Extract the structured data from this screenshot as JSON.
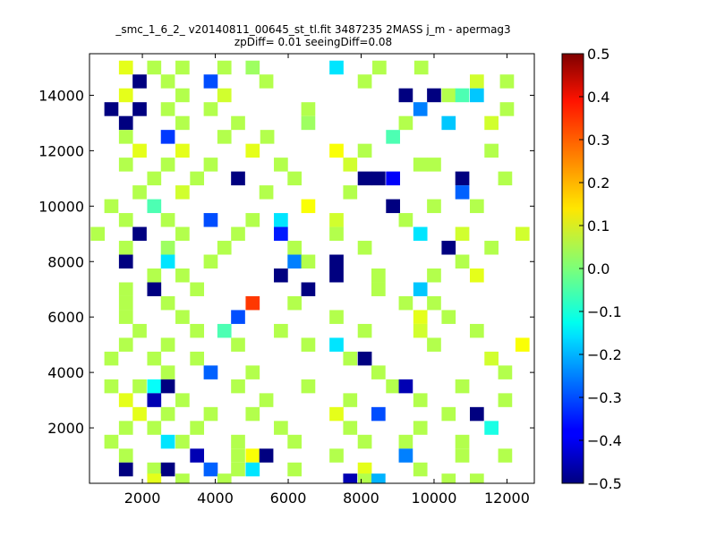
{
  "title_line1": "_smc_1_6_2_ v20140811_00645_st_tl.fit 3487235 2MASS j_m - apermag3",
  "title_line2": "zpDiff= 0.01 seeingDiff=0.08",
  "chart_data": {
    "type": "heatmap",
    "title": "_smc_1_6_2_ v20140811_00645_st_tl.fit 3487235 2MASS j_m - apermag3 zpDiff= 0.01 seeingDiff=0.08",
    "xlim": [
      550,
      12750
    ],
    "ylim": [
      0,
      15500
    ],
    "xticks": [
      "2000",
      "4000",
      "6000",
      "8000",
      "10000",
      "12000"
    ],
    "yticks": [
      "2000",
      "4000",
      "6000",
      "8000",
      "10000",
      "12000",
      "14000"
    ],
    "colorbar": {
      "min": -0.5,
      "max": 0.5,
      "colormap": "jet",
      "ticks": [
        "0.5",
        "0.4",
        "0.3",
        "0.2",
        "0.1",
        "0.0",
        "−0.1",
        "−0.2",
        "−0.3",
        "−0.4",
        "−0.5"
      ]
    },
    "grid": false,
    "bin_size": [
      385,
      500
    ],
    "cells": [
      {
        "x": 1550,
        "y": 15000,
        "value": 0.1
      },
      {
        "x": 2325,
        "y": 15000,
        "value": 0.05
      },
      {
        "x": 3100,
        "y": 15000,
        "value": 0.05
      },
      {
        "x": 4250,
        "y": 15000,
        "value": 0.05
      },
      {
        "x": 5025,
        "y": 15000,
        "value": 0.03
      },
      {
        "x": 7325,
        "y": 15000,
        "value": -0.15
      },
      {
        "x": 8500,
        "y": 15000,
        "value": 0.05
      },
      {
        "x": 9650,
        "y": 15000,
        "value": 0.05
      },
      {
        "x": 1925,
        "y": 14500,
        "value": -0.5
      },
      {
        "x": 2700,
        "y": 14500,
        "value": 0.05
      },
      {
        "x": 3875,
        "y": 14500,
        "value": -0.3
      },
      {
        "x": 5400,
        "y": 14500,
        "value": 0.05
      },
      {
        "x": 8100,
        "y": 14500,
        "value": 0.05
      },
      {
        "x": 11175,
        "y": 14500,
        "value": 0.08
      },
      {
        "x": 12000,
        "y": 14500,
        "value": 0.05
      },
      {
        "x": 1550,
        "y": 14000,
        "value": 0.1
      },
      {
        "x": 3100,
        "y": 14000,
        "value": 0.05
      },
      {
        "x": 4250,
        "y": 14000,
        "value": 0.08
      },
      {
        "x": 9225,
        "y": 14000,
        "value": -0.5
      },
      {
        "x": 10000,
        "y": 14000,
        "value": -0.5
      },
      {
        "x": 10400,
        "y": 14000,
        "value": 0.05
      },
      {
        "x": 10775,
        "y": 14000,
        "value": -0.05
      },
      {
        "x": 11175,
        "y": 14000,
        "value": -0.18
      },
      {
        "x": 1150,
        "y": 13500,
        "value": -0.5
      },
      {
        "x": 1925,
        "y": 13500,
        "value": -0.5
      },
      {
        "x": 2700,
        "y": 13500,
        "value": 0.05
      },
      {
        "x": 3875,
        "y": 13500,
        "value": 0.05
      },
      {
        "x": 6550,
        "y": 13500,
        "value": 0.05
      },
      {
        "x": 9625,
        "y": 13500,
        "value": -0.25
      },
      {
        "x": 12000,
        "y": 13500,
        "value": 0.05
      },
      {
        "x": 1550,
        "y": 13000,
        "value": -0.5
      },
      {
        "x": 3100,
        "y": 13000,
        "value": 0.05
      },
      {
        "x": 4625,
        "y": 13000,
        "value": 0.05
      },
      {
        "x": 6550,
        "y": 13000,
        "value": 0.03
      },
      {
        "x": 9225,
        "y": 13000,
        "value": 0.05
      },
      {
        "x": 10400,
        "y": 13000,
        "value": -0.18
      },
      {
        "x": 11575,
        "y": 13000,
        "value": 0.08
      },
      {
        "x": 1550,
        "y": 12500,
        "value": 0.05
      },
      {
        "x": 2700,
        "y": 12500,
        "value": -0.32
      },
      {
        "x": 4250,
        "y": 12500,
        "value": 0.05
      },
      {
        "x": 5425,
        "y": 12500,
        "value": 0.05
      },
      {
        "x": 8875,
        "y": 12500,
        "value": -0.05
      },
      {
        "x": 1925,
        "y": 12000,
        "value": 0.1
      },
      {
        "x": 3100,
        "y": 12000,
        "value": 0.1
      },
      {
        "x": 5025,
        "y": 12000,
        "value": 0.1
      },
      {
        "x": 7325,
        "y": 12000,
        "value": 0.12
      },
      {
        "x": 8100,
        "y": 12000,
        "value": 0.05
      },
      {
        "x": 11575,
        "y": 12000,
        "value": 0.05
      },
      {
        "x": 1550,
        "y": 11500,
        "value": 0.05
      },
      {
        "x": 2700,
        "y": 11500,
        "value": 0.05
      },
      {
        "x": 3875,
        "y": 11500,
        "value": 0.05
      },
      {
        "x": 5800,
        "y": 11500,
        "value": 0.05
      },
      {
        "x": 7700,
        "y": 11500,
        "value": 0.08
      },
      {
        "x": 9625,
        "y": 11500,
        "value": 0.05
      },
      {
        "x": 10000,
        "y": 11500,
        "value": 0.05
      },
      {
        "x": 2325,
        "y": 11000,
        "value": 0.05
      },
      {
        "x": 3500,
        "y": 11000,
        "value": 0.05
      },
      {
        "x": 4625,
        "y": 11000,
        "value": -0.5
      },
      {
        "x": 6175,
        "y": 11000,
        "value": 0.05
      },
      {
        "x": 8100,
        "y": 11000,
        "value": -0.5
      },
      {
        "x": 8475,
        "y": 11000,
        "value": -0.5
      },
      {
        "x": 8875,
        "y": 11000,
        "value": -0.38
      },
      {
        "x": 10775,
        "y": 11000,
        "value": -0.5
      },
      {
        "x": 11950,
        "y": 11000,
        "value": 0.05
      },
      {
        "x": 1925,
        "y": 10500,
        "value": 0.05
      },
      {
        "x": 3100,
        "y": 10500,
        "value": 0.08
      },
      {
        "x": 5400,
        "y": 10500,
        "value": 0.05
      },
      {
        "x": 7700,
        "y": 10500,
        "value": 0.05
      },
      {
        "x": 10775,
        "y": 10500,
        "value": -0.28
      },
      {
        "x": 1150,
        "y": 10000,
        "value": 0.05
      },
      {
        "x": 2325,
        "y": 10000,
        "value": -0.05
      },
      {
        "x": 6550,
        "y": 10000,
        "value": 0.12
      },
      {
        "x": 8875,
        "y": 10000,
        "value": -0.5
      },
      {
        "x": 10000,
        "y": 10000,
        "value": 0.05
      },
      {
        "x": 11175,
        "y": 10000,
        "value": 0.05
      },
      {
        "x": 1550,
        "y": 9500,
        "value": 0.05
      },
      {
        "x": 2700,
        "y": 9500,
        "value": 0.05
      },
      {
        "x": 3875,
        "y": 9500,
        "value": -0.3
      },
      {
        "x": 5025,
        "y": 9500,
        "value": 0.05
      },
      {
        "x": 5800,
        "y": 9500,
        "value": -0.15
      },
      {
        "x": 7325,
        "y": 9500,
        "value": 0.08
      },
      {
        "x": 9225,
        "y": 9500,
        "value": 0.05
      },
      {
        "x": 775,
        "y": 9000,
        "value": 0.05
      },
      {
        "x": 1925,
        "y": 9000,
        "value": -0.5
      },
      {
        "x": 3100,
        "y": 9000,
        "value": 0.05
      },
      {
        "x": 4625,
        "y": 9000,
        "value": 0.05
      },
      {
        "x": 5800,
        "y": 9000,
        "value": -0.35
      },
      {
        "x": 7325,
        "y": 9000,
        "value": 0.05
      },
      {
        "x": 9625,
        "y": 9000,
        "value": -0.15
      },
      {
        "x": 10775,
        "y": 9000,
        "value": 0.08
      },
      {
        "x": 12425,
        "y": 9000,
        "value": 0.08
      },
      {
        "x": 1550,
        "y": 8500,
        "value": 0.05
      },
      {
        "x": 2700,
        "y": 8500,
        "value": 0.03
      },
      {
        "x": 4250,
        "y": 8500,
        "value": 0.05
      },
      {
        "x": 6175,
        "y": 8500,
        "value": 0.05
      },
      {
        "x": 8100,
        "y": 8500,
        "value": 0.05
      },
      {
        "x": 10400,
        "y": 8500,
        "value": -0.5
      },
      {
        "x": 11575,
        "y": 8500,
        "value": 0.05
      },
      {
        "x": 1550,
        "y": 8000,
        "value": -0.5
      },
      {
        "x": 2700,
        "y": 8000,
        "value": -0.15
      },
      {
        "x": 3875,
        "y": 8000,
        "value": 0.05
      },
      {
        "x": 6175,
        "y": 8000,
        "value": -0.25
      },
      {
        "x": 6550,
        "y": 8000,
        "value": 0.05
      },
      {
        "x": 7325,
        "y": 8000,
        "value": -0.5
      },
      {
        "x": 10775,
        "y": 8000,
        "value": 0.05
      },
      {
        "x": 2325,
        "y": 7500,
        "value": 0.05
      },
      {
        "x": 3100,
        "y": 7500,
        "value": 0.05
      },
      {
        "x": 5800,
        "y": 7500,
        "value": -0.5
      },
      {
        "x": 7325,
        "y": 7500,
        "value": -0.5
      },
      {
        "x": 8475,
        "y": 7500,
        "value": 0.05
      },
      {
        "x": 10000,
        "y": 7500,
        "value": 0.05
      },
      {
        "x": 11175,
        "y": 7500,
        "value": 0.1
      },
      {
        "x": 1550,
        "y": 7000,
        "value": 0.05
      },
      {
        "x": 2325,
        "y": 7000,
        "value": -0.5
      },
      {
        "x": 3500,
        "y": 7000,
        "value": 0.05
      },
      {
        "x": 6550,
        "y": 7000,
        "value": -0.5
      },
      {
        "x": 8475,
        "y": 7000,
        "value": 0.05
      },
      {
        "x": 9625,
        "y": 7000,
        "value": -0.18
      },
      {
        "x": 1550,
        "y": 6500,
        "value": 0.05
      },
      {
        "x": 2700,
        "y": 6500,
        "value": 0.05
      },
      {
        "x": 5025,
        "y": 6500,
        "value": 0.32
      },
      {
        "x": 6175,
        "y": 6500,
        "value": 0.05
      },
      {
        "x": 9225,
        "y": 6500,
        "value": 0.05
      },
      {
        "x": 10000,
        "y": 6500,
        "value": 0.05
      },
      {
        "x": 1550,
        "y": 6000,
        "value": 0.05
      },
      {
        "x": 3100,
        "y": 6000,
        "value": 0.05
      },
      {
        "x": 4625,
        "y": 6000,
        "value": -0.3
      },
      {
        "x": 7325,
        "y": 6000,
        "value": 0.05
      },
      {
        "x": 9625,
        "y": 6000,
        "value": 0.1
      },
      {
        "x": 10400,
        "y": 6000,
        "value": 0.05
      },
      {
        "x": 1925,
        "y": 5500,
        "value": 0.05
      },
      {
        "x": 3500,
        "y": 5500,
        "value": 0.05
      },
      {
        "x": 4250,
        "y": 5500,
        "value": -0.05
      },
      {
        "x": 5800,
        "y": 5500,
        "value": 0.05
      },
      {
        "x": 8100,
        "y": 5500,
        "value": 0.05
      },
      {
        "x": 9625,
        "y": 5500,
        "value": 0.08
      },
      {
        "x": 11175,
        "y": 5500,
        "value": 0.05
      },
      {
        "x": 1550,
        "y": 5000,
        "value": 0.05
      },
      {
        "x": 2700,
        "y": 5000,
        "value": 0.05
      },
      {
        "x": 4625,
        "y": 5000,
        "value": 0.05
      },
      {
        "x": 6550,
        "y": 5000,
        "value": 0.05
      },
      {
        "x": 7325,
        "y": 5000,
        "value": -0.15
      },
      {
        "x": 10000,
        "y": 5000,
        "value": 0.05
      },
      {
        "x": 12425,
        "y": 5000,
        "value": 0.12
      },
      {
        "x": 1150,
        "y": 4500,
        "value": 0.05
      },
      {
        "x": 2325,
        "y": 4500,
        "value": 0.05
      },
      {
        "x": 3500,
        "y": 4500,
        "value": 0.05
      },
      {
        "x": 7700,
        "y": 4500,
        "value": 0.05
      },
      {
        "x": 8100,
        "y": 4500,
        "value": -0.5
      },
      {
        "x": 11575,
        "y": 4500,
        "value": 0.08
      },
      {
        "x": 2700,
        "y": 4000,
        "value": 0.05
      },
      {
        "x": 3875,
        "y": 4000,
        "value": -0.28
      },
      {
        "x": 5025,
        "y": 4000,
        "value": 0.05
      },
      {
        "x": 8475,
        "y": 4000,
        "value": 0.05
      },
      {
        "x": 11950,
        "y": 4000,
        "value": 0.05
      },
      {
        "x": 1150,
        "y": 3500,
        "value": 0.05
      },
      {
        "x": 1925,
        "y": 3500,
        "value": 0.05
      },
      {
        "x": 2325,
        "y": 3500,
        "value": -0.12
      },
      {
        "x": 2700,
        "y": 3500,
        "value": -0.5
      },
      {
        "x": 4625,
        "y": 3500,
        "value": 0.05
      },
      {
        "x": 6550,
        "y": 3500,
        "value": 0.05
      },
      {
        "x": 8875,
        "y": 3500,
        "value": 0.05
      },
      {
        "x": 9225,
        "y": 3500,
        "value": -0.45
      },
      {
        "x": 10775,
        "y": 3500,
        "value": 0.05
      },
      {
        "x": 1550,
        "y": 3000,
        "value": 0.1
      },
      {
        "x": 2325,
        "y": 3000,
        "value": -0.45
      },
      {
        "x": 3100,
        "y": 3000,
        "value": 0.05
      },
      {
        "x": 5400,
        "y": 3000,
        "value": 0.05
      },
      {
        "x": 7700,
        "y": 3000,
        "value": 0.05
      },
      {
        "x": 9625,
        "y": 3000,
        "value": 0.05
      },
      {
        "x": 11950,
        "y": 3000,
        "value": 0.05
      },
      {
        "x": 1925,
        "y": 2500,
        "value": 0.1
      },
      {
        "x": 2700,
        "y": 2500,
        "value": 0.05
      },
      {
        "x": 3875,
        "y": 2500,
        "value": 0.05
      },
      {
        "x": 5025,
        "y": 2500,
        "value": 0.05
      },
      {
        "x": 7325,
        "y": 2500,
        "value": 0.1
      },
      {
        "x": 8475,
        "y": 2500,
        "value": -0.3
      },
      {
        "x": 10400,
        "y": 2500,
        "value": 0.05
      },
      {
        "x": 11175,
        "y": 2500,
        "value": -0.5
      },
      {
        "x": 1550,
        "y": 2000,
        "value": 0.05
      },
      {
        "x": 2325,
        "y": 2000,
        "value": 0.05
      },
      {
        "x": 3500,
        "y": 2000,
        "value": 0.05
      },
      {
        "x": 5800,
        "y": 2000,
        "value": 0.05
      },
      {
        "x": 7700,
        "y": 2000,
        "value": 0.05
      },
      {
        "x": 9625,
        "y": 2000,
        "value": 0.05
      },
      {
        "x": 11575,
        "y": 2000,
        "value": -0.1
      },
      {
        "x": 1150,
        "y": 1500,
        "value": 0.05
      },
      {
        "x": 2700,
        "y": 1500,
        "value": -0.15
      },
      {
        "x": 3100,
        "y": 1500,
        "value": 0.05
      },
      {
        "x": 4625,
        "y": 1500,
        "value": 0.05
      },
      {
        "x": 6175,
        "y": 1500,
        "value": 0.05
      },
      {
        "x": 8100,
        "y": 1500,
        "value": 0.05
      },
      {
        "x": 9225,
        "y": 1500,
        "value": 0.05
      },
      {
        "x": 10775,
        "y": 1500,
        "value": 0.05
      },
      {
        "x": 1550,
        "y": 1000,
        "value": 0.05
      },
      {
        "x": 3500,
        "y": 1000,
        "value": -0.45
      },
      {
        "x": 4625,
        "y": 1000,
        "value": 0.05
      },
      {
        "x": 5025,
        "y": 1000,
        "value": 0.12
      },
      {
        "x": 5400,
        "y": 1000,
        "value": -0.5
      },
      {
        "x": 7325,
        "y": 1000,
        "value": 0.05
      },
      {
        "x": 9225,
        "y": 1000,
        "value": -0.25
      },
      {
        "x": 10775,
        "y": 1000,
        "value": 0.05
      },
      {
        "x": 11950,
        "y": 1000,
        "value": 0.05
      },
      {
        "x": 1550,
        "y": 500,
        "value": -0.5
      },
      {
        "x": 2325,
        "y": 500,
        "value": 0.05
      },
      {
        "x": 2700,
        "y": 500,
        "value": -0.5
      },
      {
        "x": 3875,
        "y": 500,
        "value": -0.28
      },
      {
        "x": 4625,
        "y": 500,
        "value": 0.05
      },
      {
        "x": 5025,
        "y": 500,
        "value": -0.15
      },
      {
        "x": 6175,
        "y": 500,
        "value": 0.05
      },
      {
        "x": 8100,
        "y": 500,
        "value": 0.1
      },
      {
        "x": 9625,
        "y": 500,
        "value": 0.05
      },
      {
        "x": 2325,
        "y": 100,
        "value": 0.1
      },
      {
        "x": 3100,
        "y": 100,
        "value": 0.05
      },
      {
        "x": 4250,
        "y": 100,
        "value": 0.05
      },
      {
        "x": 7700,
        "y": 100,
        "value": -0.45
      },
      {
        "x": 8100,
        "y": 100,
        "value": 0.05
      },
      {
        "x": 8475,
        "y": 100,
        "value": -0.2
      },
      {
        "x": 10400,
        "y": 100,
        "value": 0.05
      },
      {
        "x": 11175,
        "y": 100,
        "value": 0.05
      }
    ]
  }
}
